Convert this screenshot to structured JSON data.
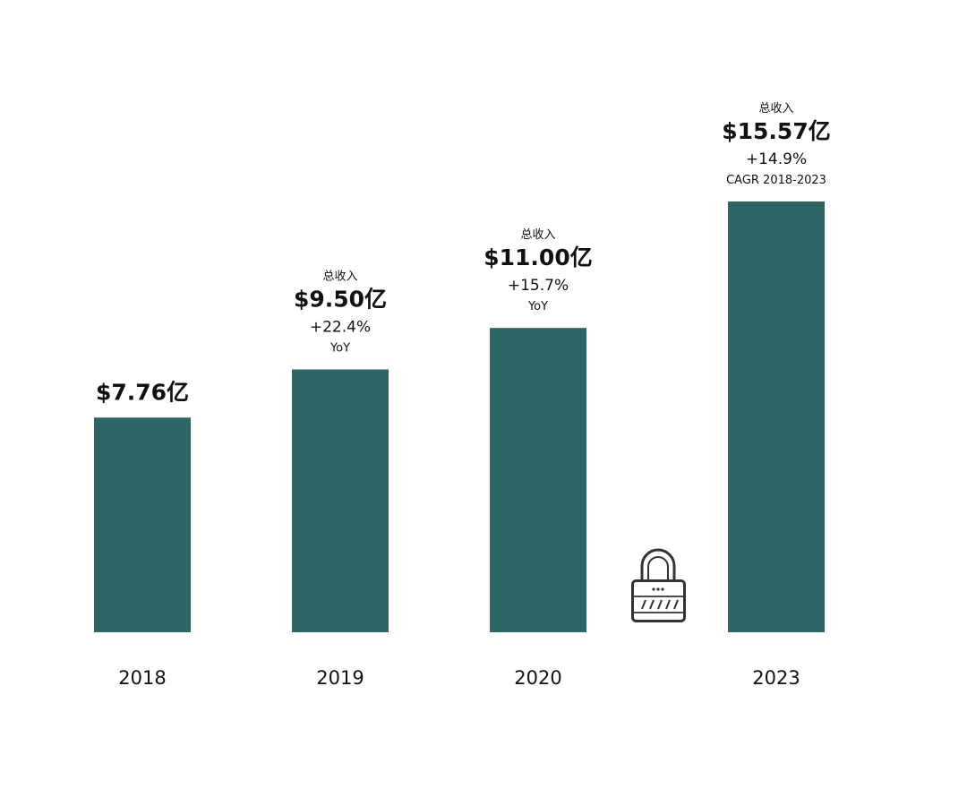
{
  "chart_data": {
    "type": "bar",
    "title": "",
    "xlabel": "",
    "ylabel": "",
    "categories": [
      "2018",
      "2019",
      "2020",
      "2023"
    ],
    "values": [
      7.76,
      9.5,
      11.0,
      15.57
    ],
    "unit": "亿",
    "ylim": [
      0,
      15.57
    ],
    "grid": false,
    "bar_color": "#2e6666",
    "labels": [
      {
        "top": "",
        "value": "$7.76亿",
        "growth": "",
        "note": ""
      },
      {
        "top": "总收入",
        "value": "$9.50亿",
        "growth": "+22.4%",
        "note": "YoY"
      },
      {
        "top": "总收入",
        "value": "$11.00亿",
        "growth": "+15.7%",
        "note": "YoY"
      },
      {
        "top": "总收入",
        "value": "$15.57亿",
        "growth": "+14.9%",
        "note": "CAGR 2018-2023"
      }
    ]
  },
  "decorations": {
    "icon": "lock-icon"
  }
}
